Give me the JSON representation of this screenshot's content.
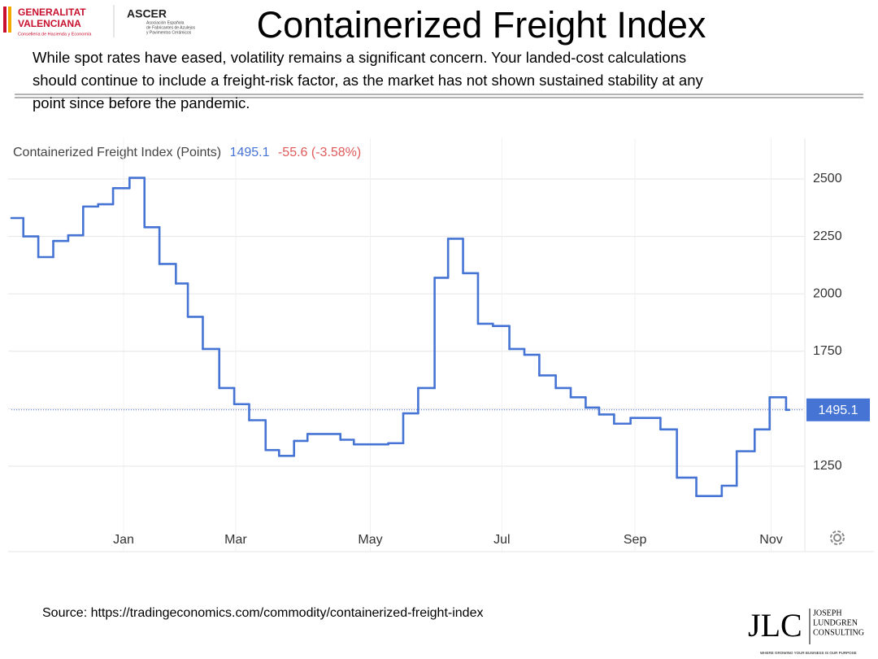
{
  "header": {
    "logo_left": [
      "GENERALITAT",
      "VALENCIANA",
      "Conselleria de Hacienda y Economía"
    ],
    "logo_mid": [
      "ASCER",
      "Asociación Española",
      "de Fabricantes de Azulejos",
      "y Pavimentos Cerámicos"
    ]
  },
  "title": "Containerized Freight Index",
  "body_lines": [
    "While spot rates have eased, volatility remains a significant concern. Your landed-cost calculations",
    "should continue to include a freight-risk factor, as the market has not shown sustained stability at any",
    "point since before the pandemic."
  ],
  "chart_data": {
    "type": "line",
    "step": true,
    "title": "Containerized Freight Index (Points)",
    "change_label": "-55.6 (-3.58%)",
    "x": [
      0,
      0.8,
      1.8,
      2.8,
      3.8,
      4.8,
      5.8,
      6.8,
      7.9,
      8.9,
      9.9,
      11,
      11.8,
      12.8,
      13.9,
      14.9,
      15.9,
      17,
      17.9,
      18.9,
      19.8,
      22,
      22.9,
      25.2,
      26.2,
      27.2,
      28.3,
      29.2,
      30.2,
      31.2,
      32.2,
      33.3,
      34.3,
      35.3,
      36.4,
      37.4,
      38.4,
      39.3,
      40.3,
      41.4,
      43.4,
      44.5,
      45.8,
      47.5,
      48.5,
      49.7,
      50.7,
      51.8
    ],
    "series": [
      {
        "name": "Containerized Freight Index",
        "color": "#4574d4",
        "values": [
          2330,
          2250,
          2160,
          2230,
          2255,
          2380,
          2390,
          2460,
          2505,
          2290,
          2130,
          2045,
          1900,
          1760,
          1590,
          1520,
          1450,
          1320,
          1295,
          1360,
          1390,
          1365,
          1345,
          1350,
          1480,
          1590,
          2070,
          2240,
          2090,
          1870,
          1860,
          1760,
          1735,
          1645,
          1590,
          1550,
          1505,
          1475,
          1435,
          1460,
          1410,
          1200,
          1120,
          1165,
          1315,
          1410,
          1550,
          1495.1
        ]
      }
    ],
    "xlim": [
      0,
      53
    ],
    "xticks": [
      {
        "value": 7.5,
        "label": "Jan"
      },
      {
        "value": 15,
        "label": "Mar"
      },
      {
        "value": 24,
        "label": "May"
      },
      {
        "value": 32.8,
        "label": "Jul"
      },
      {
        "value": 41.7,
        "label": "Sep"
      },
      {
        "value": 50.8,
        "label": "Nov"
      }
    ],
    "ylim": [
      995,
      2677
    ],
    "yticks": [
      1250,
      1500,
      1750,
      2000,
      2250,
      2500
    ],
    "grid": true,
    "last_value_marker": true
  },
  "source": "Source: https://tradingeconomics.com/commodity/containerized-freight-index",
  "footer_logo": {
    "mark": "JLC",
    "lines": [
      "JOSEPH",
      "LUNDGREN",
      "CONSULTING"
    ],
    "tagline": "WHERE GROWING YOUR BUSINESS IS OUR PURPOSE"
  }
}
